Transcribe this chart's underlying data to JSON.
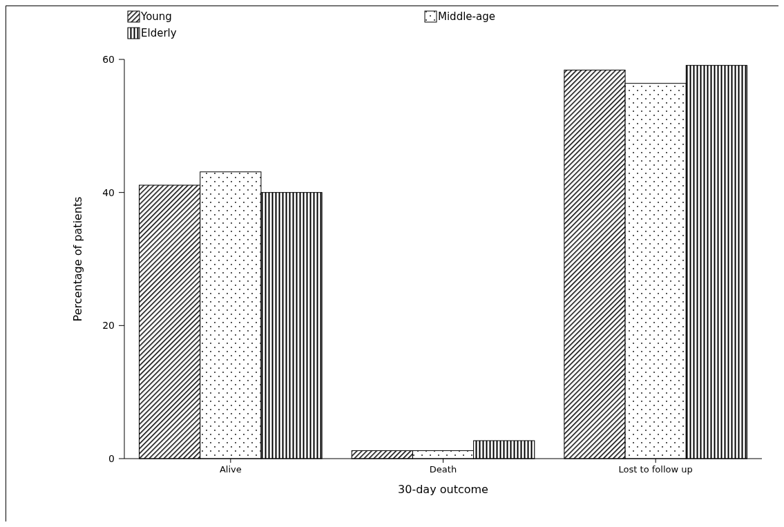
{
  "chart_data": {
    "type": "bar",
    "xlabel": "30-day outcome",
    "ylabel": "Percentage of patients",
    "categories": [
      "Alive",
      "Death",
      "Lost to follow up"
    ],
    "series": [
      {
        "name": "Young",
        "color": "#000000",
        "values": [
          41.1,
          1.2,
          58.4
        ]
      },
      {
        "name": "Middle-age",
        "color": "#000000",
        "values": [
          43.1,
          1.2,
          56.4
        ]
      },
      {
        "name": "Elderly",
        "color": "#000000",
        "values": [
          40.0,
          2.7,
          59.1
        ]
      }
    ],
    "ylim": [
      0,
      60
    ],
    "yticks": [
      0,
      20,
      40,
      60
    ],
    "grid": false,
    "legend": "top"
  }
}
